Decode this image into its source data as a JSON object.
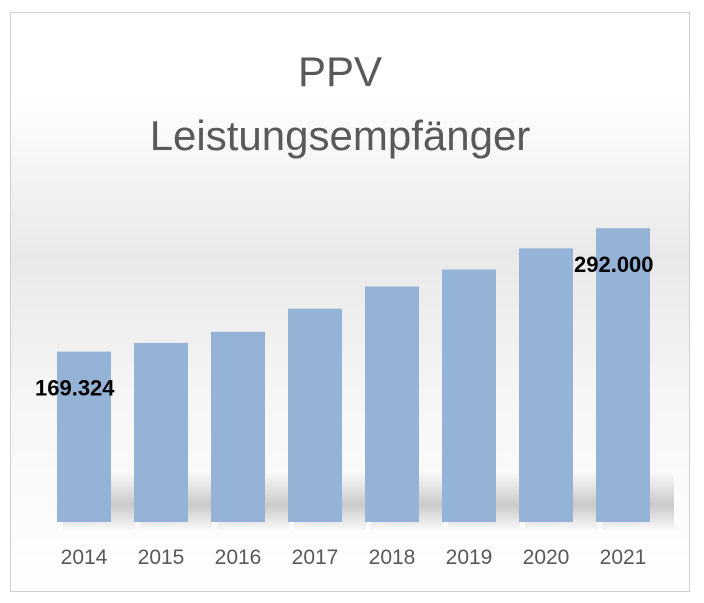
{
  "chart_data": {
    "type": "bar",
    "title_line1": "PPV",
    "title_line2": "Leistungsempfänger",
    "xlabel": "",
    "ylabel": "",
    "categories": [
      "2014",
      "2015",
      "2016",
      "2017",
      "2018",
      "2019",
      "2020",
      "2021"
    ],
    "values": [
      169324,
      178000,
      189000,
      212000,
      234000,
      251000,
      272000,
      292000
    ],
    "data_labels": [
      {
        "index": 0,
        "text": "169.324"
      },
      {
        "index": 7,
        "text": "292.000"
      }
    ],
    "ylim": [
      0,
      320000
    ],
    "grid": false,
    "legend": "none",
    "colors": {
      "bar": "#95b3d7",
      "text": "#595959",
      "label": "#000000"
    }
  }
}
